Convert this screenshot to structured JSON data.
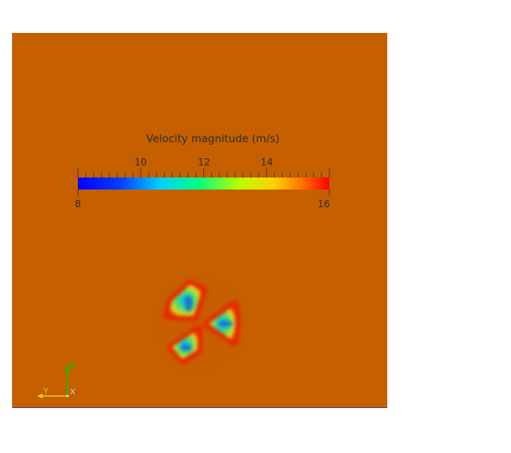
{
  "colorbar": {
    "title": "Velocity magnitude (m/s)",
    "min_label": "8",
    "max_label": "16",
    "major_ticks": [
      "10",
      "12",
      "14"
    ],
    "range": [
      8,
      16
    ],
    "colormap": [
      "#0000ff",
      "#00c8ff",
      "#00ff8c",
      "#b4ff00",
      "#ffd200",
      "#ff6400",
      "#ff0000"
    ]
  },
  "axes": {
    "z_label": "Z",
    "y_label": "Y",
    "x_label": "X",
    "z_color": "#00cc00",
    "y_color": "#e6d000",
    "x_color": "#d0d0d0"
  },
  "background_color": "#c55f00"
}
